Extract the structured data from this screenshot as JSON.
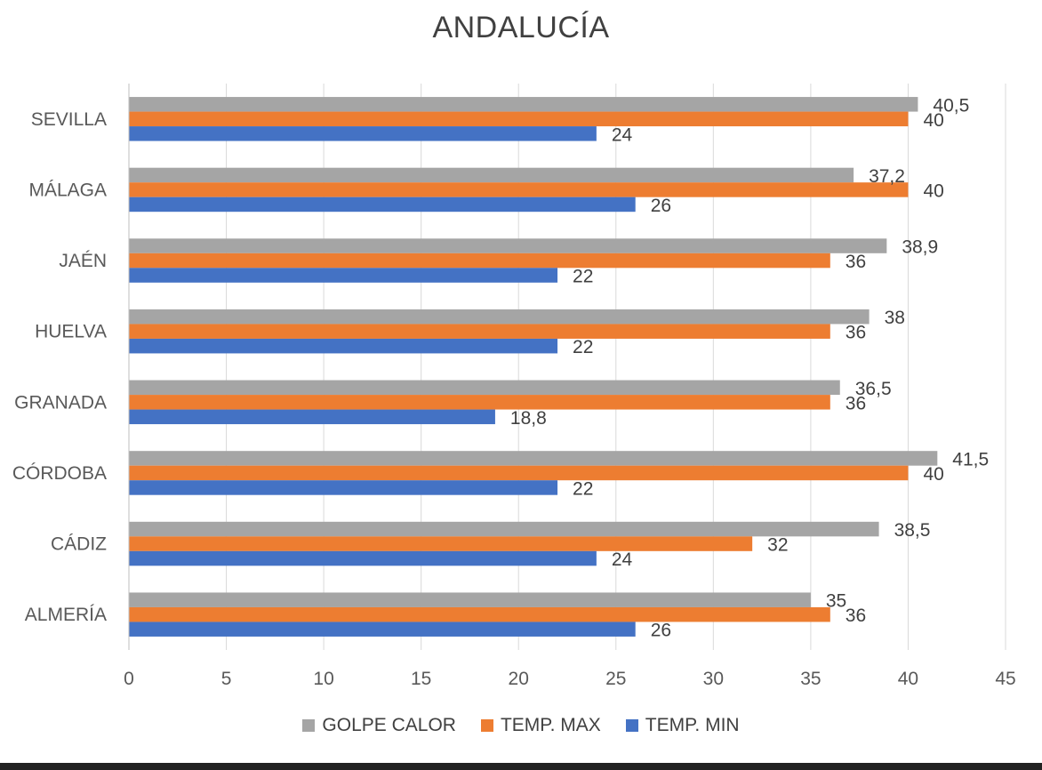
{
  "chart_data": {
    "type": "bar",
    "orientation": "horizontal",
    "title": "ANDALUCÍA",
    "categories": [
      "ALMERÍA",
      "CÁDIZ",
      "CÓRDOBA",
      "GRANADA",
      "HUELVA",
      "JAÉN",
      "MÁLAGA",
      "SEVILLA"
    ],
    "category_order": "bottom-to-top",
    "series": [
      {
        "name": "GOLPE CALOR",
        "color": "#A5A5A5",
        "values": [
          35,
          38.5,
          41.5,
          36.5,
          38,
          38.9,
          37.2,
          40.5
        ],
        "labels": [
          "35",
          "38,5",
          "41,5",
          "36,5",
          "38",
          "38,9",
          "37,2",
          "40,5"
        ]
      },
      {
        "name": "TEMP. MAX",
        "color": "#ED7D31",
        "values": [
          36,
          32,
          40,
          36,
          36,
          36,
          40,
          40
        ],
        "labels": [
          "36",
          "32",
          "40",
          "36",
          "36",
          "36",
          "40",
          "40"
        ]
      },
      {
        "name": "TEMP. MIN",
        "color": "#4472C4",
        "values": [
          26,
          24,
          22,
          18.8,
          22,
          22,
          26,
          24
        ],
        "labels": [
          "26",
          "24",
          "22",
          "18,8",
          "22",
          "22",
          "26",
          "24"
        ]
      }
    ],
    "xlim": [
      0,
      45
    ],
    "xticks": [
      0,
      5,
      10,
      15,
      20,
      25,
      30,
      35,
      40,
      45
    ],
    "grid": true,
    "legend": "bottom"
  }
}
